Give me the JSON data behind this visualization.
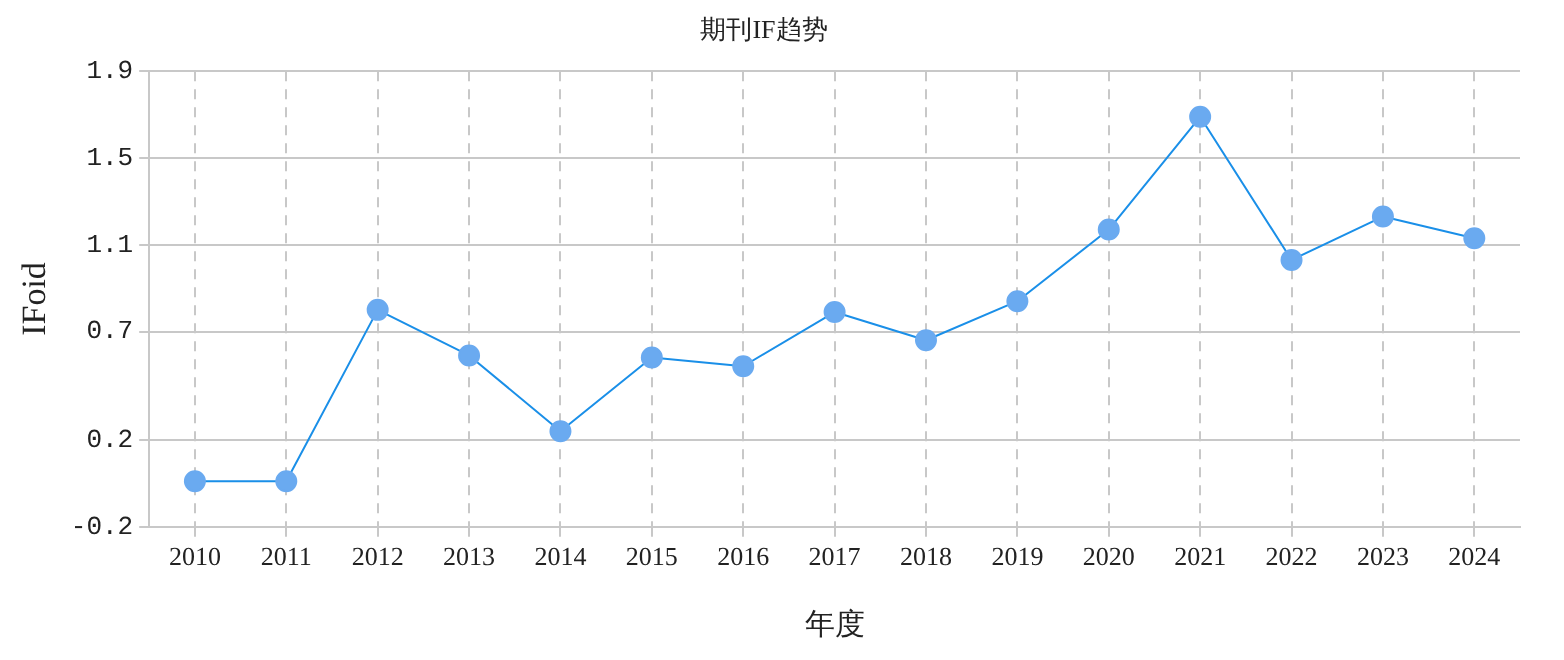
{
  "chart_data": {
    "type": "line",
    "title": "期刊IF趋势",
    "xlabel": "年度",
    "ylabel": "IFoid",
    "categories": [
      "2010",
      "2011",
      "2012",
      "2013",
      "2014",
      "2015",
      "2016",
      "2017",
      "2018",
      "2019",
      "2020",
      "2021",
      "2022",
      "2023",
      "2024"
    ],
    "series": [
      {
        "color": "#1a8fe8",
        "values": [
          0.01,
          0.01,
          0.8,
          0.59,
          0.24,
          0.58,
          0.54,
          0.79,
          0.66,
          0.84,
          1.17,
          1.69,
          1.03,
          1.23,
          1.13
        ]
      }
    ],
    "ylim": [
      -0.2,
      1.9
    ],
    "yticks": [
      -0.2,
      0.2,
      0.7,
      1.1,
      1.5,
      1.9
    ],
    "grid": true,
    "marker": "circle",
    "line_style": "solid"
  }
}
